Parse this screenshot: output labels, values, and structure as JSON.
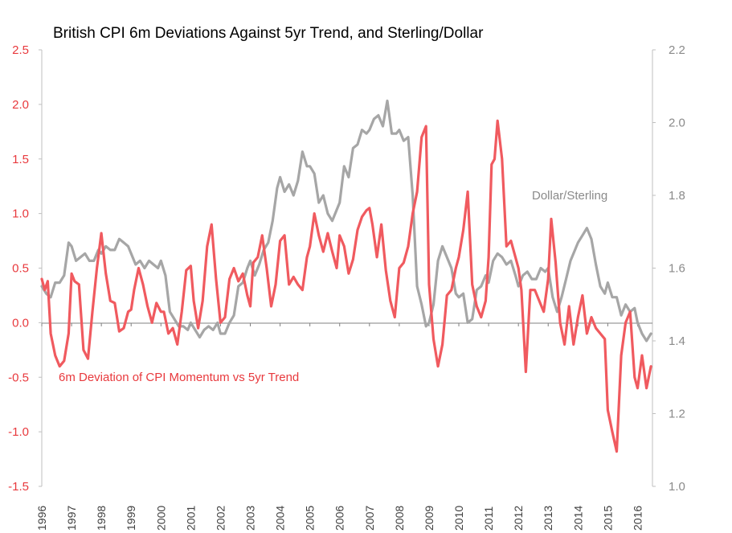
{
  "chart_data": {
    "type": "line",
    "title": "British CPI 6m Deviations Against 5yr Trend, and Sterling/Dollar",
    "left_axis": {
      "ylim": [
        -1.5,
        2.5
      ],
      "ticks": [
        "2.5",
        "2.0",
        "1.5",
        "1.0",
        "0.5",
        "0.0",
        "-0.5",
        "-1.0",
        "-1.5"
      ],
      "color": "#e8393d"
    },
    "right_axis": {
      "ylim": [
        1.0,
        2.2
      ],
      "ticks": [
        "2.2",
        "2.0",
        "1.8",
        "1.6",
        "1.4",
        "1.2",
        "1.0"
      ],
      "color": "#8a8a8a"
    },
    "x_ticks": [
      "1996",
      "1997",
      "1998",
      "1999",
      "2000",
      "2001",
      "2002",
      "2003",
      "2004",
      "2005",
      "2006",
      "2007",
      "2008",
      "2009",
      "2010",
      "2011",
      "2012",
      "2013",
      "2014",
      "2015",
      "2016"
    ],
    "xlim": [
      1996.0,
      2016.5
    ],
    "grid": false,
    "series": [
      {
        "name": "6m Deviation of CPI Momentum vs 5yr Trend",
        "axis": "left",
        "color": "#f05a5f",
        "x": [
          1996.0,
          1996.1,
          1996.2,
          1996.3,
          1996.45,
          1996.6,
          1996.75,
          1996.9,
          1997.0,
          1997.1,
          1997.25,
          1997.4,
          1997.55,
          1997.7,
          1997.85,
          1998.0,
          1998.15,
          1998.3,
          1998.45,
          1998.6,
          1998.75,
          1998.9,
          1999.0,
          1999.1,
          1999.25,
          1999.4,
          1999.55,
          1999.7,
          1999.85,
          2000.0,
          2000.1,
          2000.25,
          2000.4,
          2000.55,
          2000.7,
          2000.85,
          2001.0,
          2001.1,
          2001.25,
          2001.4,
          2001.55,
          2001.7,
          2001.85,
          2002.0,
          2002.15,
          2002.3,
          2002.45,
          2002.6,
          2002.75,
          2002.9,
          2003.0,
          2003.1,
          2003.25,
          2003.4,
          2003.55,
          2003.7,
          2003.85,
          2004.0,
          2004.15,
          2004.3,
          2004.45,
          2004.6,
          2004.75,
          2004.9,
          2005.0,
          2005.15,
          2005.3,
          2005.45,
          2005.6,
          2005.75,
          2005.9,
          2006.0,
          2006.15,
          2006.3,
          2006.45,
          2006.6,
          2006.75,
          2006.9,
          2007.0,
          2007.1,
          2007.25,
          2007.4,
          2007.55,
          2007.7,
          2007.85,
          2008.0,
          2008.15,
          2008.3,
          2008.45,
          2008.6,
          2008.75,
          2008.9,
          2009.0,
          2009.15,
          2009.3,
          2009.45,
          2009.6,
          2009.75,
          2009.9,
          2010.0,
          2010.15,
          2010.3,
          2010.45,
          2010.6,
          2010.75,
          2010.9,
          2011.0,
          2011.1,
          2011.2,
          2011.3,
          2011.45,
          2011.6,
          2011.75,
          2011.9,
          2012.0,
          2012.1,
          2012.25,
          2012.4,
          2012.55,
          2012.7,
          2012.85,
          2013.0,
          2013.1,
          2013.25,
          2013.4,
          2013.55,
          2013.7,
          2013.85,
          2014.0,
          2014.15,
          2014.3,
          2014.45,
          2014.6,
          2014.75,
          2014.9,
          2015.0,
          2015.15,
          2015.3,
          2015.45,
          2015.6,
          2015.75,
          2015.9,
          2016.0,
          2016.15,
          2016.3,
          2016.45
        ],
        "values": [
          0.4,
          0.3,
          0.38,
          -0.1,
          -0.3,
          -0.4,
          -0.35,
          -0.1,
          0.45,
          0.38,
          0.35,
          -0.25,
          -0.33,
          0.1,
          0.5,
          0.82,
          0.45,
          0.2,
          0.18,
          -0.08,
          -0.05,
          0.1,
          0.12,
          0.3,
          0.5,
          0.35,
          0.15,
          0.0,
          0.18,
          0.1,
          0.1,
          -0.1,
          -0.05,
          -0.2,
          0.1,
          0.48,
          0.52,
          0.2,
          -0.05,
          0.2,
          0.7,
          0.9,
          0.4,
          0.0,
          0.05,
          0.4,
          0.5,
          0.38,
          0.45,
          0.25,
          0.15,
          0.55,
          0.6,
          0.8,
          0.5,
          0.15,
          0.35,
          0.75,
          0.8,
          0.35,
          0.42,
          0.35,
          0.3,
          0.6,
          0.7,
          1.0,
          0.8,
          0.65,
          0.82,
          0.65,
          0.5,
          0.8,
          0.7,
          0.45,
          0.58,
          0.85,
          0.97,
          1.03,
          1.05,
          0.9,
          0.6,
          0.9,
          0.48,
          0.2,
          0.05,
          0.5,
          0.55,
          0.7,
          1.0,
          1.2,
          1.7,
          1.8,
          0.35,
          -0.15,
          -0.4,
          -0.2,
          0.25,
          0.3,
          0.5,
          0.6,
          0.85,
          1.2,
          0.35,
          0.15,
          0.05,
          0.2,
          0.6,
          1.45,
          1.5,
          1.85,
          1.5,
          0.7,
          0.75,
          0.6,
          0.5,
          0.3,
          -0.45,
          0.3,
          0.3,
          0.2,
          0.1,
          0.4,
          0.95,
          0.55,
          0.0,
          -0.2,
          0.15,
          -0.2,
          0.05,
          0.25,
          -0.1,
          0.05,
          -0.05,
          -0.1,
          -0.15,
          -0.8,
          -1.0,
          -1.18,
          -0.3,
          0.0,
          0.1,
          -0.5,
          -0.6,
          -0.3,
          -0.6,
          -0.4
        ],
        "label": "6m Deviation of CPI Momentum vs 5yr Trend"
      },
      {
        "name": "Dollar/Sterling",
        "axis": "right",
        "color": "#a6a6a6",
        "x": [
          1996.0,
          1996.15,
          1996.3,
          1996.45,
          1996.6,
          1996.75,
          1996.9,
          1997.0,
          1997.15,
          1997.3,
          1997.45,
          1997.6,
          1997.75,
          1997.9,
          1998.0,
          1998.15,
          1998.3,
          1998.45,
          1998.6,
          1998.75,
          1998.9,
          1999.0,
          1999.15,
          1999.3,
          1999.45,
          1999.6,
          1999.75,
          1999.9,
          2000.0,
          2000.15,
          2000.3,
          2000.45,
          2000.6,
          2000.75,
          2000.9,
          2001.0,
          2001.15,
          2001.3,
          2001.45,
          2001.6,
          2001.75,
          2001.9,
          2002.0,
          2002.15,
          2002.3,
          2002.45,
          2002.6,
          2002.75,
          2002.9,
          2003.0,
          2003.15,
          2003.3,
          2003.45,
          2003.6,
          2003.75,
          2003.9,
          2004.0,
          2004.15,
          2004.3,
          2004.45,
          2004.6,
          2004.75,
          2004.9,
          2005.0,
          2005.15,
          2005.3,
          2005.45,
          2005.6,
          2005.75,
          2005.9,
          2006.0,
          2006.15,
          2006.3,
          2006.45,
          2006.6,
          2006.75,
          2006.9,
          2007.0,
          2007.15,
          2007.3,
          2007.45,
          2007.6,
          2007.75,
          2007.9,
          2008.0,
          2008.15,
          2008.3,
          2008.45,
          2008.6,
          2008.75,
          2008.9,
          2009.0,
          2009.15,
          2009.3,
          2009.45,
          2009.6,
          2009.75,
          2009.9,
          2010.0,
          2010.15,
          2010.3,
          2010.45,
          2010.6,
          2010.75,
          2010.9,
          2011.0,
          2011.15,
          2011.3,
          2011.45,
          2011.6,
          2011.75,
          2011.9,
          2012.0,
          2012.15,
          2012.3,
          2012.45,
          2012.6,
          2012.75,
          2012.9,
          2013.0,
          2013.15,
          2013.3,
          2013.45,
          2013.6,
          2013.75,
          2013.9,
          2014.0,
          2014.15,
          2014.3,
          2014.45,
          2014.6,
          2014.75,
          2014.9,
          2015.0,
          2015.15,
          2015.3,
          2015.45,
          2015.6,
          2015.75,
          2015.9,
          2016.0,
          2016.15,
          2016.3,
          2016.45
        ],
        "values": [
          1.55,
          1.53,
          1.52,
          1.56,
          1.56,
          1.58,
          1.67,
          1.66,
          1.62,
          1.63,
          1.64,
          1.62,
          1.62,
          1.65,
          1.64,
          1.66,
          1.65,
          1.65,
          1.68,
          1.67,
          1.66,
          1.64,
          1.61,
          1.62,
          1.6,
          1.62,
          1.61,
          1.6,
          1.62,
          1.58,
          1.48,
          1.46,
          1.44,
          1.44,
          1.43,
          1.45,
          1.43,
          1.41,
          1.43,
          1.44,
          1.43,
          1.45,
          1.42,
          1.42,
          1.45,
          1.47,
          1.55,
          1.56,
          1.6,
          1.62,
          1.58,
          1.61,
          1.65,
          1.67,
          1.73,
          1.82,
          1.85,
          1.81,
          1.83,
          1.8,
          1.84,
          1.92,
          1.88,
          1.88,
          1.86,
          1.78,
          1.8,
          1.75,
          1.73,
          1.76,
          1.78,
          1.88,
          1.85,
          1.93,
          1.94,
          1.98,
          1.97,
          1.98,
          2.01,
          2.02,
          1.99,
          2.06,
          1.97,
          1.97,
          1.98,
          1.95,
          1.96,
          1.8,
          1.55,
          1.5,
          1.44,
          1.45,
          1.5,
          1.62,
          1.66,
          1.63,
          1.6,
          1.53,
          1.52,
          1.53,
          1.45,
          1.46,
          1.54,
          1.55,
          1.58,
          1.56,
          1.62,
          1.64,
          1.63,
          1.61,
          1.62,
          1.58,
          1.55,
          1.58,
          1.59,
          1.57,
          1.57,
          1.6,
          1.59,
          1.6,
          1.52,
          1.48,
          1.52,
          1.57,
          1.62,
          1.65,
          1.67,
          1.69,
          1.71,
          1.68,
          1.61,
          1.55,
          1.53,
          1.56,
          1.52,
          1.52,
          1.47,
          1.5,
          1.48,
          1.49,
          1.45,
          1.42,
          1.4,
          1.42
        ],
        "label": "Dollar/Sterling"
      }
    ]
  }
}
